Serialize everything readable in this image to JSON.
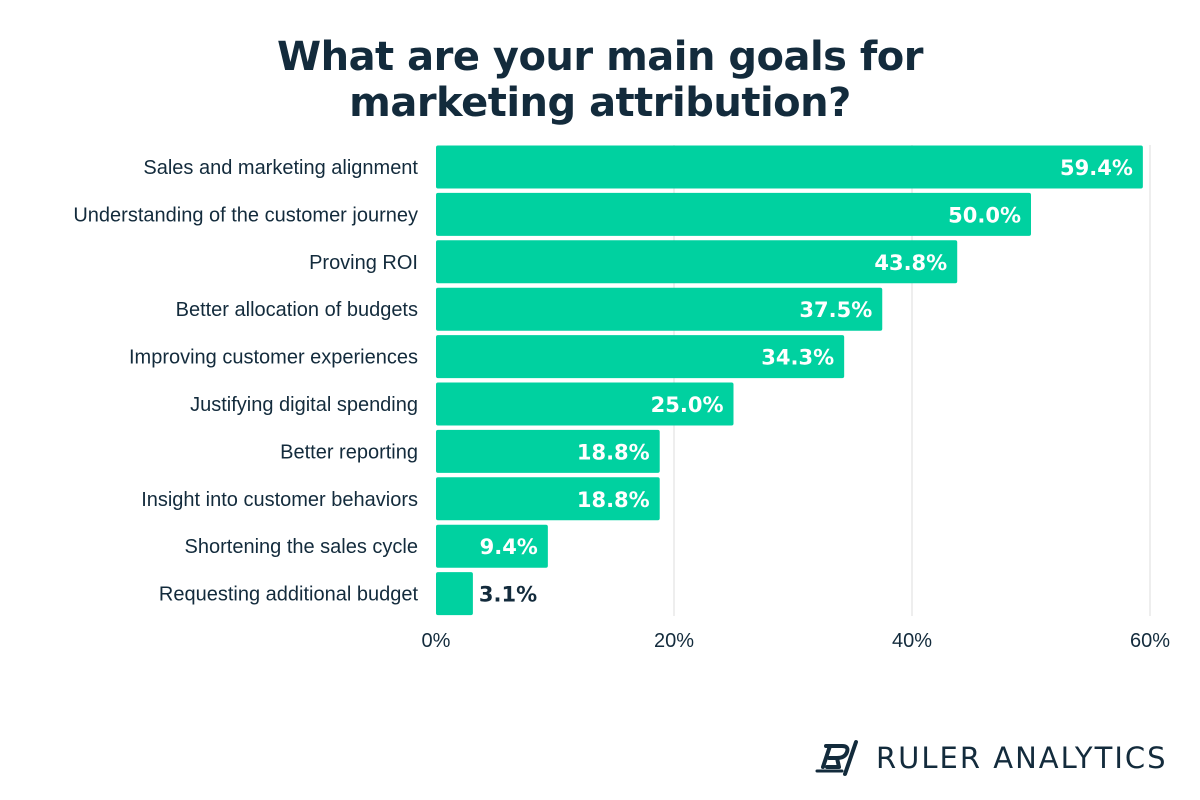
{
  "title_lines": [
    "What are your main goals for",
    "marketing attribution?"
  ],
  "brand": {
    "name": "RULER ANALYTICS",
    "icon": "ruler-analytics-logo-icon"
  },
  "colors": {
    "bar": "#00d1a0",
    "text": "#132b3c",
    "grid": "#dcdcdc",
    "label_inside": "#ffffff"
  },
  "chart_data": {
    "type": "bar",
    "orientation": "horizontal",
    "categories": [
      "Sales and marketing alignment",
      "Understanding of the customer journey",
      "Proving ROI",
      "Better allocation of budgets",
      "Improving customer experiences",
      "Justifying digital spending",
      "Better reporting",
      "Insight into customer behaviors",
      "Shortening the sales cycle",
      "Requesting additional budget"
    ],
    "values": [
      59.4,
      50.0,
      43.8,
      37.5,
      34.3,
      25.0,
      18.8,
      18.8,
      9.4,
      3.1
    ],
    "data_labels": [
      "59.4%",
      "50.0%",
      "43.8%",
      "37.5%",
      "34.3%",
      "25.0%",
      "18.8%",
      "18.8%",
      "9.4%",
      "3.1%"
    ],
    "title": "What are your main goals for marketing attribution?",
    "xlabel": "",
    "ylabel": "",
    "xlim": [
      0,
      60
    ],
    "xticks": [
      0,
      20,
      40,
      60
    ],
    "xtick_labels": [
      "0%",
      "20%",
      "40%",
      "60%"
    ],
    "grid": "vertical",
    "legend": "none"
  }
}
